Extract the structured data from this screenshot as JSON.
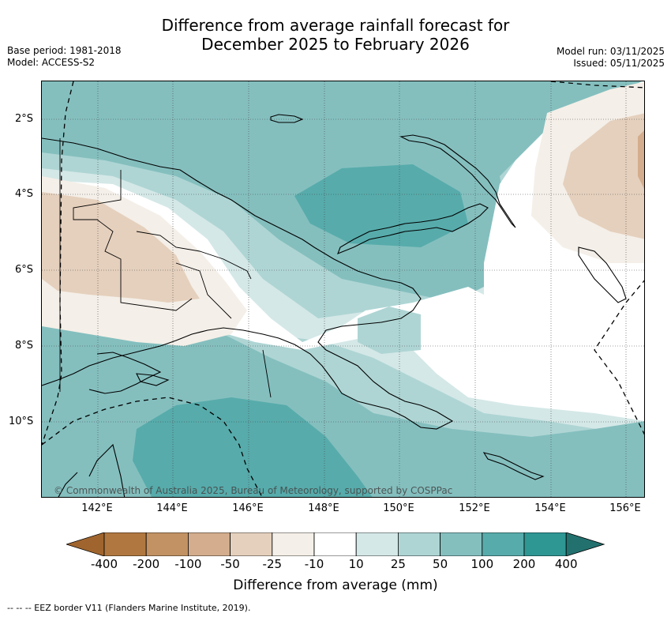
{
  "title_line1": "Difference from average rainfall forecast for",
  "title_line2": "December 2025 to February 2026",
  "base_period": "Base period: 1981-2018",
  "model": "Model: ACCESS-S2",
  "model_run": "Model run: 03/11/2025",
  "issued": "Issued: 05/11/2025",
  "lat_labels": [
    "2°S",
    "4°S",
    "6°S",
    "8°S",
    "10°S"
  ],
  "lon_labels": [
    "142°E",
    "144°E",
    "146°E",
    "148°E",
    "150°E",
    "152°E",
    "154°E",
    "156°E"
  ],
  "credit": "© Commonwealth of Australia 2025, Bureau of Meteorology, supported by COSPPac",
  "colorbar": {
    "title": "Difference from average (mm)",
    "ticks": [
      "-400",
      "-200",
      "-100",
      "-50",
      "-25",
      "-10",
      "10",
      "25",
      "50",
      "100",
      "200",
      "400"
    ],
    "colors": [
      "#a0652e",
      "#b07840",
      "#c29264",
      "#d3ad8d",
      "#e5d0bd",
      "#f4efe8",
      "#ffffff",
      "#d4e8e7",
      "#aed5d4",
      "#84bfbe",
      "#57abab",
      "#2e9794",
      "#23716f"
    ]
  },
  "footnote": "--  --  -- EEZ border V11 (Flanders Marine Institute, 2019)."
}
